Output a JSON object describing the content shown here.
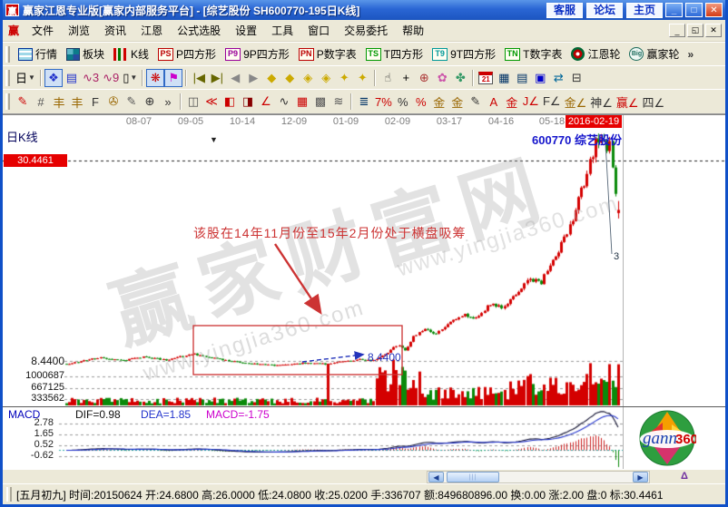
{
  "titlebar": {
    "logo": "赢",
    "title": "赢家江恩专业版[赢家内部服务平台] - [综艺股份  SH600770-195日K线]",
    "links": [
      "客服",
      "论坛",
      "主页"
    ],
    "win_buttons": {
      "min": "_",
      "max": "□",
      "close": "✕"
    }
  },
  "menubar": {
    "logo": "赢",
    "items": [
      "文件",
      "浏览",
      "资讯",
      "江恩",
      "公式选股",
      "设置",
      "工具",
      "窗口",
      "交易委托",
      "帮助"
    ],
    "mdi_buttons": {
      "min": "_",
      "restore": "◱",
      "close": "✕"
    }
  },
  "toolbar1": {
    "items": [
      {
        "type": "grid",
        "label": "行情",
        "name": "quotes"
      },
      {
        "type": "blocks",
        "label": "板块",
        "name": "sectors"
      },
      {
        "type": "candles",
        "label": "K线",
        "name": "kline"
      },
      {
        "type": "boxed",
        "text": "PS",
        "color": "#bb0000",
        "label": "P四方形",
        "name": "p-square"
      },
      {
        "type": "boxed",
        "text": "P9",
        "color": "#990099",
        "label": "9P四方形",
        "name": "9p-square"
      },
      {
        "type": "boxed",
        "text": "PN",
        "color": "#bb0000",
        "label": "P数字表",
        "name": "p-number-table"
      },
      {
        "type": "boxed",
        "text": "TS",
        "color": "#009900",
        "label": "T四方形",
        "name": "t-square"
      },
      {
        "type": "boxed",
        "text": "T9",
        "color": "#009999",
        "label": "9T四方形",
        "name": "9t-square"
      },
      {
        "type": "boxed",
        "text": "TN",
        "color": "#009900",
        "label": "T数字表",
        "name": "t-number-table"
      },
      {
        "type": "wheel",
        "label": "江恩轮",
        "name": "gann-wheel"
      },
      {
        "type": "big",
        "text": "Big",
        "label": "赢家轮",
        "name": "winner-wheel"
      }
    ],
    "overflow": "»"
  },
  "toolbar2": {
    "items": [
      {
        "g": "日",
        "c": "#000000",
        "dd": true,
        "name": "period-selector"
      },
      {
        "sep": true
      },
      {
        "g": "❖",
        "c": "#2233cc",
        "pressed": true,
        "name": "chart-style"
      },
      {
        "g": "▤",
        "c": "#2233cc",
        "name": "info-panel"
      },
      {
        "g": "∿3",
        "c": "#aa2266",
        "name": "ma-3"
      },
      {
        "g": "∿9",
        "c": "#aa2266",
        "name": "ma-9"
      },
      {
        "g": "▯",
        "c": "#000000",
        "dd": true,
        "name": "candle-type"
      },
      {
        "sep": true
      },
      {
        "g": "❋",
        "c": "#cc0000",
        "pressed": true,
        "name": "pattern-tool"
      },
      {
        "g": "⚑",
        "c": "#cc00cc",
        "pressed": true,
        "name": "flag-chart"
      },
      {
        "sep": true
      },
      {
        "g": "|◀",
        "c": "#666600",
        "name": "first-bar"
      },
      {
        "g": "▶|",
        "c": "#666600",
        "name": "last-bar"
      },
      {
        "g": "◀",
        "c": "#888888",
        "name": "prev-bar"
      },
      {
        "g": "▶",
        "c": "#888888",
        "name": "next-bar"
      },
      {
        "g": "◆",
        "c": "#ccaa00",
        "name": "zoom-out-x"
      },
      {
        "g": "◆",
        "c": "#ccaa00",
        "name": "zoom-in-x"
      },
      {
        "g": "◈",
        "c": "#ccaa00",
        "name": "expand-x"
      },
      {
        "g": "◈",
        "c": "#ccaa00",
        "name": "shrink-x"
      },
      {
        "g": "✦",
        "c": "#ccaa00",
        "name": "expand-y"
      },
      {
        "g": "✦",
        "c": "#ccaa00",
        "name": "shrink-y"
      },
      {
        "sep": true
      },
      {
        "g": "☝",
        "c": "#333333",
        "name": "hand-tool"
      },
      {
        "g": "+",
        "c": "#000000",
        "name": "crosshair-tool"
      },
      {
        "g": "⊕",
        "c": "#aa3333",
        "name": "zoom-tool"
      },
      {
        "g": "✿",
        "c": "#cc55aa",
        "name": "pink-tool"
      },
      {
        "g": "✤",
        "c": "#339966",
        "name": "green-tool"
      },
      {
        "sep": true
      },
      {
        "type": "cal",
        "text": "21",
        "name": "calendar"
      },
      {
        "g": "▦",
        "c": "#003366",
        "name": "calculator"
      },
      {
        "g": "▤",
        "c": "#003366",
        "name": "notebook"
      },
      {
        "g": "▣",
        "c": "#0000cc",
        "name": "save"
      },
      {
        "g": "⇄",
        "c": "#006699",
        "name": "data-transfer"
      },
      {
        "g": "⊟",
        "c": "#333333",
        "name": "print"
      }
    ]
  },
  "toolbar3": {
    "items": [
      {
        "g": "✎",
        "c": "#cc0000",
        "name": "draw-pen"
      },
      {
        "g": "#",
        "c": "#555555",
        "name": "grid-lines"
      },
      {
        "g": "丰",
        "c": "#996600",
        "name": "gold-grid-1"
      },
      {
        "g": "丰",
        "c": "#996600",
        "name": "gold-grid-2"
      },
      {
        "g": "F",
        "c": "#333333",
        "name": "fibonacci-grid"
      },
      {
        "g": "✇",
        "c": "#996600",
        "name": "spiral"
      },
      {
        "g": "✎",
        "c": "#555555",
        "name": "draw-pen-2"
      },
      {
        "g": "⊕",
        "c": "#333333",
        "name": "circle-cross"
      },
      {
        "g": "»",
        "c": "#333333",
        "name": "more-left"
      },
      {
        "sep": true
      },
      {
        "g": "◫",
        "c": "#555555",
        "name": "box-tool"
      },
      {
        "g": "≪",
        "c": "#cc0000",
        "name": "fan-lines"
      },
      {
        "g": "◧",
        "c": "#cc0000",
        "name": "box-fan"
      },
      {
        "g": "◨",
        "c": "#880000",
        "name": "box-lines"
      },
      {
        "g": "∠",
        "c": "#cc0000",
        "name": "angle-lines"
      },
      {
        "g": "∿",
        "c": "#333333",
        "name": "zigzag"
      },
      {
        "g": "▦",
        "c": "#cc0000",
        "name": "gann-grid"
      },
      {
        "g": "▩",
        "c": "#555555",
        "name": "dense-grid"
      },
      {
        "g": "≋",
        "c": "#555555",
        "name": "slant-lines"
      },
      {
        "sep": true
      },
      {
        "g": "≣",
        "c": "#003366",
        "name": "bars-tool"
      },
      {
        "g": "7%",
        "c": "#cc0000",
        "name": "percent-7"
      },
      {
        "g": "%",
        "c": "#333333",
        "name": "percent"
      },
      {
        "g": "%",
        "c": "#cc0000",
        "name": "percent-line"
      },
      {
        "g": "金",
        "c": "#996600",
        "name": "gold-circle"
      },
      {
        "g": "金",
        "c": "#996600",
        "name": "gold-line"
      },
      {
        "g": "✎",
        "c": "#333333",
        "name": "mark-pen"
      },
      {
        "g": "A",
        "c": "#cc0000",
        "name": "a-wave"
      },
      {
        "g": "金",
        "c": "#cc0000",
        "name": "gold-tool"
      },
      {
        "g": "J∠",
        "c": "#cc0000",
        "name": "j-angle"
      },
      {
        "g": "F∠",
        "c": "#333333",
        "name": "f-angle"
      },
      {
        "g": "金∠",
        "c": "#996600",
        "name": "gold-angle"
      },
      {
        "g": "神∠",
        "c": "#333333",
        "name": "shen-angle"
      },
      {
        "g": "赢∠",
        "c": "#cc0000",
        "name": "win-angle"
      },
      {
        "g": "四∠",
        "c": "#333333",
        "name": "four-angle"
      }
    ]
  },
  "chart": {
    "panel_label": "日K线",
    "dates": [
      "08-07",
      "09-05",
      "10-14",
      "12-09",
      "01-09",
      "02-09",
      "03-17",
      "04-16",
      "05-18"
    ],
    "current_date": "2016-02-19",
    "stock_label": "600770  综艺股份",
    "price_marker": "30.4461",
    "marker_triangle": "▼",
    "support_label": "8.4400",
    "volume_ticks": [
      "1000687",
      "667125",
      "333562"
    ],
    "annotation": "该股在14年11月份至15年2月份处于横盘吸筹",
    "box_label": "8.4400",
    "peak_label": "3",
    "watermark_main": "赢家财富网",
    "watermark_url": "www.yingjia360.com"
  },
  "macd": {
    "label": "MACD",
    "dif": "DIF=0.98",
    "dea": "DEA=1.85",
    "macd": "MACD=-1.75",
    "ticks": [
      "2.78",
      "1.65",
      "0.52",
      "-0.62"
    ]
  },
  "logo": {
    "text1": "gann",
    "text2": "360"
  },
  "scrollbar": {
    "left": "◀",
    "right": "▶",
    "pen": "Δ"
  },
  "statusbar": {
    "text": "[五月初九] 时间:20150624 开:24.6800 高:26.0000 低:24.0800 收:25.0200 手:336707 额:849680896.00 换:0.00 涨:2.00 盘:0 标:30.4461"
  },
  "chart_data": {
    "type": "candlestick",
    "symbol": "SH600770",
    "stock_name": "综艺股份",
    "period": "195日K线",
    "bars": 195,
    "price_marker_level": 30.4461,
    "support_level": 8.44,
    "volume_axis": [
      1000687,
      667125,
      333562
    ],
    "macd_values": {
      "DIF": 0.98,
      "DEA": 1.85,
      "MACD": -1.75,
      "axis": [
        2.78,
        1.65,
        0.52,
        -0.62
      ]
    },
    "last_bar": {
      "date": "20150624",
      "open": 24.68,
      "high": 26.0,
      "low": 24.08,
      "close": 25.02,
      "hands": 336707,
      "amount": 849680896.0
    },
    "trend_keypoints": [
      [
        0,
        8.1
      ],
      [
        0.06,
        8.8
      ],
      [
        0.1,
        8.45
      ],
      [
        0.14,
        8.9
      ],
      [
        0.18,
        8.55
      ],
      [
        0.23,
        9.2
      ],
      [
        0.27,
        8.7
      ],
      [
        0.33,
        8.15
      ],
      [
        0.38,
        7.95
      ],
      [
        0.43,
        8.2
      ],
      [
        0.47,
        8.1
      ],
      [
        0.5,
        8.35
      ],
      [
        0.53,
        8.6
      ],
      [
        0.555,
        8.44
      ],
      [
        0.58,
        9.3
      ],
      [
        0.6,
        10.2
      ],
      [
        0.615,
        9.6
      ],
      [
        0.63,
        11.2
      ],
      [
        0.65,
        12.0
      ],
      [
        0.67,
        11.4
      ],
      [
        0.7,
        12.8
      ],
      [
        0.72,
        13.6
      ],
      [
        0.74,
        13.0
      ],
      [
        0.77,
        14.8
      ],
      [
        0.79,
        14.2
      ],
      [
        0.82,
        16.2
      ],
      [
        0.84,
        17.5
      ],
      [
        0.86,
        17.0
      ],
      [
        0.88,
        19.5
      ],
      [
        0.9,
        21.5
      ],
      [
        0.915,
        23.5
      ],
      [
        0.93,
        26.5
      ],
      [
        0.945,
        29.5
      ],
      [
        0.96,
        32.5
      ],
      [
        0.97,
        33.3
      ],
      [
        0.978,
        31.0
      ],
      [
        0.985,
        33.4
      ],
      [
        0.99,
        29.0
      ],
      [
        1.0,
        25.02
      ]
    ]
  }
}
